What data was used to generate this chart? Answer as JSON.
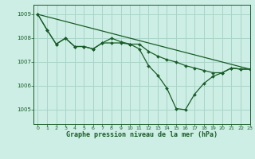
{
  "background_color": "#cceee4",
  "grid_color": "#aad4c8",
  "line_color": "#1a5c28",
  "title": "Graphe pression niveau de la mer (hPa)",
  "xlim": [
    -0.5,
    23
  ],
  "ylim": [
    1004.4,
    1009.4
  ],
  "yticks": [
    1005,
    1006,
    1007,
    1008,
    1009
  ],
  "xticks": [
    0,
    1,
    2,
    3,
    4,
    5,
    6,
    7,
    8,
    9,
    10,
    11,
    12,
    13,
    14,
    15,
    16,
    17,
    18,
    19,
    20,
    21,
    22,
    23
  ],
  "line_straight": {
    "x": [
      0,
      23
    ],
    "y": [
      1009.0,
      1006.7
    ]
  },
  "line_mid": {
    "x": [
      0,
      1,
      2,
      3,
      4,
      5,
      6,
      7,
      8,
      9,
      10,
      11,
      12,
      13,
      14,
      15,
      16,
      17,
      18,
      19,
      20,
      21,
      22,
      23
    ],
    "y": [
      1009.0,
      1008.35,
      1007.75,
      1008.0,
      1007.65,
      1007.65,
      1007.55,
      1007.8,
      1007.8,
      1007.8,
      1007.75,
      1007.75,
      1007.45,
      1007.25,
      1007.1,
      1007.0,
      1006.85,
      1006.75,
      1006.65,
      1006.55,
      1006.55,
      1006.75,
      1006.7,
      1006.7
    ]
  },
  "line_dip": {
    "x": [
      0,
      1,
      2,
      3,
      4,
      5,
      6,
      7,
      8,
      9,
      10,
      11,
      12,
      13,
      14,
      15,
      16,
      17,
      18,
      19,
      20,
      21,
      22,
      23
    ],
    "y": [
      1009.0,
      1008.35,
      1007.75,
      1008.0,
      1007.65,
      1007.65,
      1007.55,
      1007.8,
      1008.0,
      1007.85,
      1007.75,
      1007.55,
      1006.85,
      1006.45,
      1005.9,
      1005.05,
      1005.0,
      1005.65,
      1006.1,
      1006.4,
      1006.55,
      1006.75,
      1006.7,
      1006.7
    ]
  }
}
